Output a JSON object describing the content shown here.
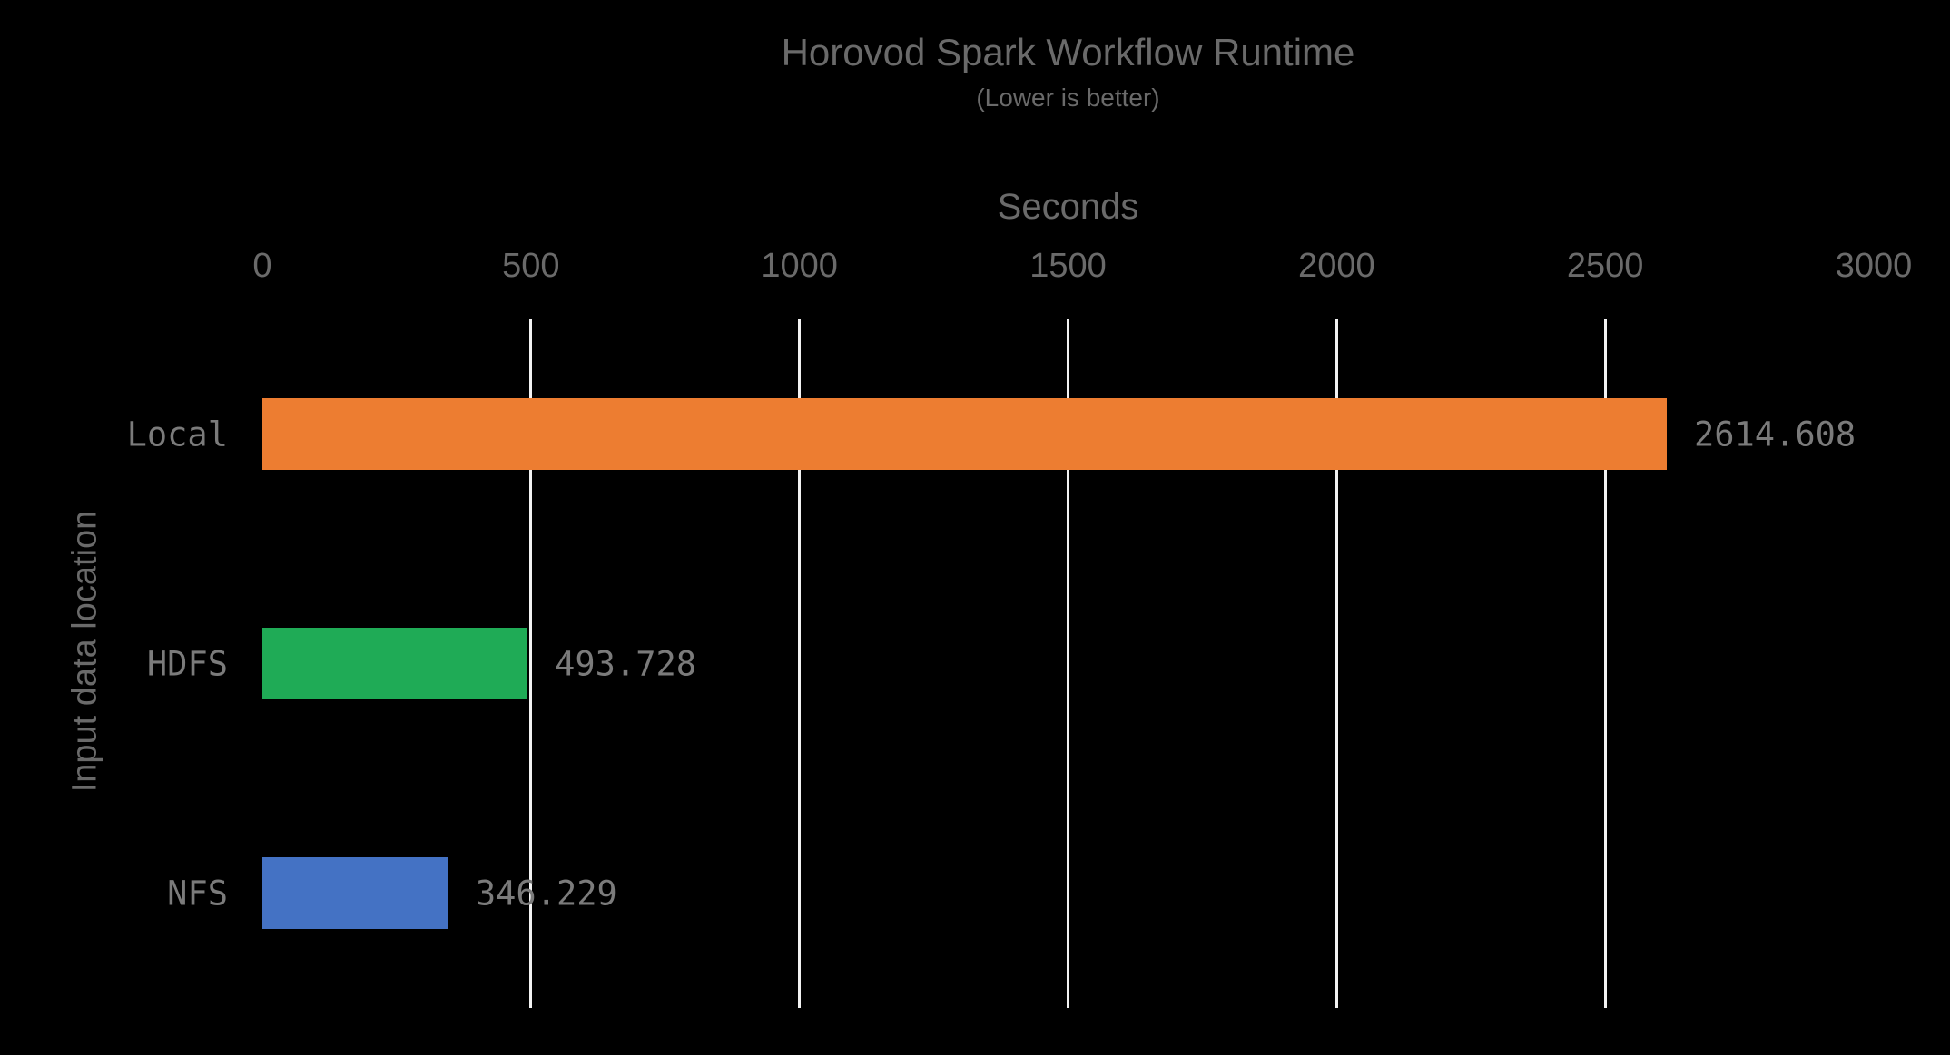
{
  "chart_data": {
    "type": "bar",
    "orientation": "horizontal",
    "title": "Horovod Spark Workflow Runtime",
    "subtitle": "(Lower is better)",
    "xlabel": "Seconds",
    "ylabel": "Input data location",
    "categories": [
      "Local",
      "HDFS",
      "NFS"
    ],
    "values": [
      2614.608,
      493.728,
      346.229
    ],
    "value_labels": [
      "2614.608",
      "493.728",
      "346.229"
    ],
    "bar_colors": [
      "#ED7D31",
      "#1FAB56",
      "#4472C4"
    ],
    "xlim": [
      0,
      3000
    ],
    "xticks": [
      0,
      500,
      1000,
      1500,
      2000,
      2500,
      3000
    ],
    "gridlines_at": [
      500,
      1000,
      1500,
      2000,
      2500
    ],
    "grid": true,
    "legend": "none",
    "background_color": "#000000",
    "text_color": "#6A6A6A",
    "label_text_color": "#7B7B7B",
    "gridline_color": "#F2F2F2"
  }
}
